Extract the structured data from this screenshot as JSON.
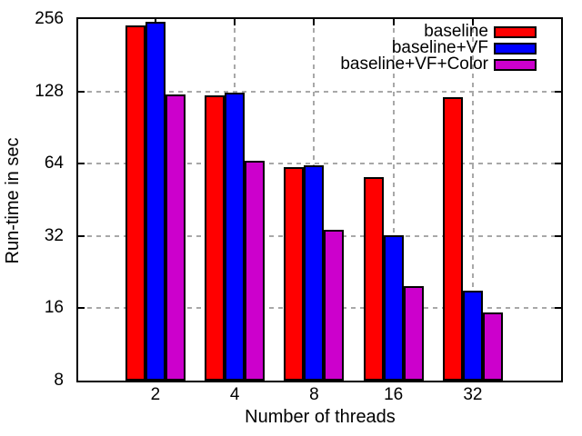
{
  "chart_data": {
    "type": "bar",
    "title": "",
    "xlabel": "Number of threads",
    "ylabel": "Run-time in sec",
    "categories": [
      "2",
      "4",
      "8",
      "16",
      "32"
    ],
    "series": [
      {
        "name": "baseline",
        "color": "#ff0000",
        "values": [
          240,
          123,
          62,
          56.5,
          121
        ]
      },
      {
        "name": "baseline+VF",
        "color": "#0000ff",
        "values": [
          250,
          127,
          63,
          32.3,
          19
        ]
      },
      {
        "name": "baseline+VF+Color",
        "color": "#cc00cc",
        "values": [
          124,
          66,
          34,
          19.8,
          15.4
        ]
      }
    ],
    "y_scale": "log2",
    "ylim": [
      8,
      256
    ],
    "yticks": [
      8,
      16,
      32,
      64,
      128,
      256
    ],
    "grid": true,
    "legend_position": "top-right",
    "colors": {
      "grid": "#a8a8a8",
      "axis": "#000000",
      "background": "#ffffff"
    }
  }
}
